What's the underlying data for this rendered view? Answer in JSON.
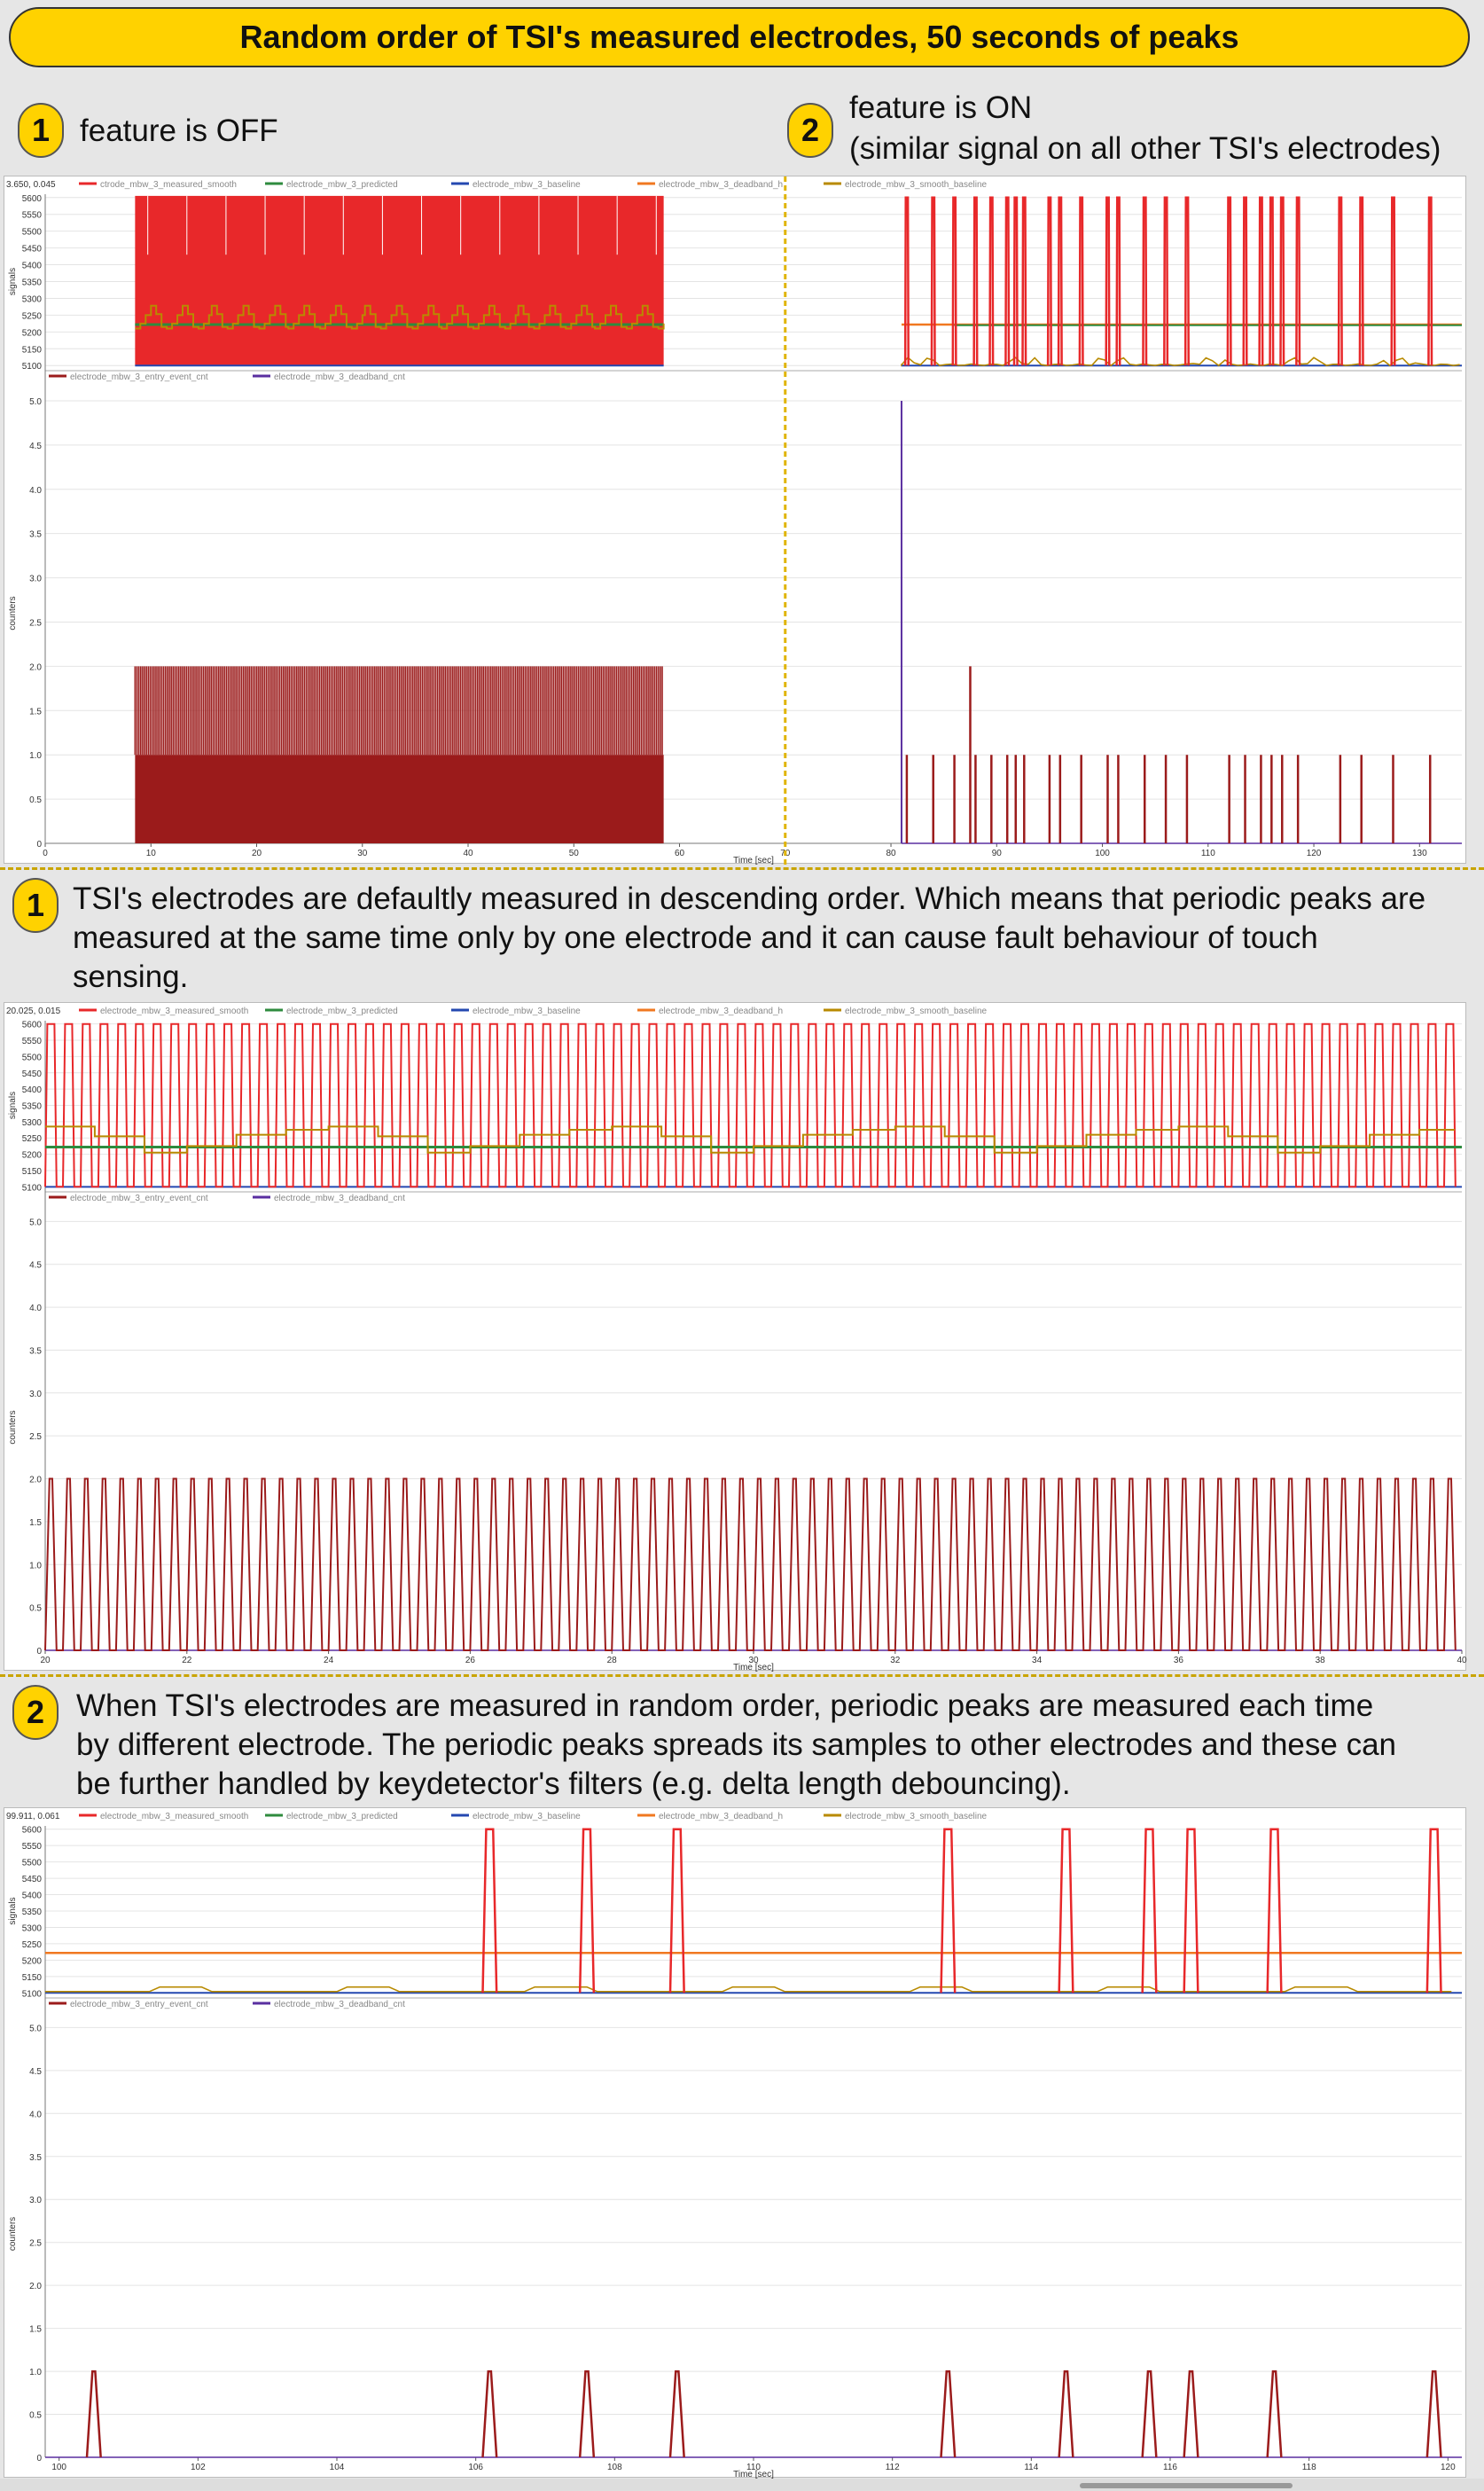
{
  "header": {
    "title": "Random order of TSI's measured electrodes, 50 seconds of peaks"
  },
  "intro": {
    "left_badge": "1",
    "left_caption": "feature is OFF",
    "right_badge": "2",
    "right_caption_1": "feature is ON",
    "right_caption_2": "(similar signal on all other TSI's electrodes)"
  },
  "section1": {
    "badge": "1",
    "lines": [
      "TSI's electrodes are defaultly measured in descending order. Which means that periodic peaks are",
      "measured at the same time only by one electrode and it can cause fault behaviour of touch",
      "sensing."
    ]
  },
  "section2": {
    "badge": "2",
    "lines": [
      "When TSI's electrodes are measured in random order, periodic peaks are measured each time",
      "by different electrode. The periodic peaks spreads its samples to other electrodes and these can",
      "be further handled by keydetector's filters (e.g. delta length debouncing)."
    ]
  },
  "colors": {
    "measured": "#e8282a",
    "predicted": "#2e8b3e",
    "baseline": "#2448b0",
    "deadband_h": "#f07820",
    "smooth_baseline": "#b88a00",
    "entry_event": "#9b1b1b",
    "deadband_cnt": "#5a2fa0"
  },
  "chart_data": [
    {
      "type": "line",
      "readout": "3.650, 0.045",
      "x_label": "Time [sec]",
      "xlim": [
        0,
        134
      ],
      "x_ticks": [
        0,
        10,
        20,
        30,
        40,
        50,
        60,
        70,
        80,
        90,
        100,
        110,
        120,
        130
      ],
      "marker_x": 70,
      "signals": {
        "ylabel": "signals",
        "ylim": [
          5090,
          5610
        ],
        "y_ticks": [
          5100,
          5150,
          5200,
          5250,
          5300,
          5350,
          5400,
          5450,
          5500,
          5550,
          5600
        ],
        "legend": [
          "ctrode_mbw_3_measured_smooth",
          "electrode_mbw_3_predicted",
          "electrode_mbw_3_baseline",
          "electrode_mbw_3_deadband_h",
          "electrode_mbw_3_smooth_baseline"
        ],
        "off_segment": {
          "x": [
            8.5,
            58.5
          ],
          "band": [
            5100,
            5605
          ],
          "baseline": 5100,
          "predicted": 5222,
          "smooth_range": [
            5210,
            5278
          ]
        },
        "on_segment": {
          "x": [
            81,
            134
          ],
          "baseline": 5100,
          "predicted": 5220,
          "deadband_h": 5222,
          "peaks_x": [
            81.5,
            84,
            86,
            88,
            89.5,
            91,
            91.8,
            92.6,
            95,
            96,
            98,
            100.5,
            101.5,
            104,
            106,
            108,
            112,
            113.5,
            115,
            116,
            117,
            118.5,
            122.5,
            124.5,
            127.5,
            131
          ],
          "peak_y": 5600
        }
      },
      "counters": {
        "ylabel": "counters",
        "ylim": [
          0,
          5.2
        ],
        "y_ticks": [
          0,
          0.5,
          1.0,
          1.5,
          2.0,
          2.5,
          3.0,
          3.5,
          4.0,
          4.5,
          5.0
        ],
        "legend": [
          "electrode_mbw_3_entry_event_cnt",
          "electrode_mbw_3_deadband_cnt"
        ],
        "off_segment": {
          "x": [
            8.5,
            58.5
          ],
          "max": 2,
          "baseline_fill": 1
        },
        "on_segment": {
          "spike_x": 81,
          "spike_value": 5,
          "peaks_x": [
            81.5,
            84,
            86,
            87.5,
            88,
            89.5,
            91,
            91.8,
            92.6,
            95,
            96,
            98,
            100.5,
            101.5,
            104,
            106,
            108,
            112,
            113.5,
            115,
            116,
            117,
            118.5,
            122.5,
            124.5,
            127.5,
            131
          ],
          "peak_value": 1,
          "tall_x": 87.5,
          "tall_value": 2
        }
      }
    },
    {
      "type": "line",
      "readout": "20.025, 0.015",
      "x_label": "Time [sec]",
      "xlim": [
        20,
        40
      ],
      "x_ticks": [
        20,
        22,
        24,
        26,
        28,
        30,
        32,
        34,
        36,
        38,
        40
      ],
      "signals": {
        "ylabel": "signals",
        "ylim": [
          5090,
          5610
        ],
        "y_ticks": [
          5100,
          5150,
          5200,
          5250,
          5300,
          5350,
          5400,
          5450,
          5500,
          5550,
          5600
        ],
        "legend": [
          "electrode_mbw_3_measured_smooth",
          "electrode_mbw_3_predicted",
          "electrode_mbw_3_baseline",
          "electrode_mbw_3_deadband_h",
          "electrode_mbw_3_smooth_baseline"
        ],
        "period": 0.25,
        "peak": 5600,
        "low": 5100,
        "predicted": 5222,
        "smooth_range": [
          5205,
          5285
        ]
      },
      "counters": {
        "ylabel": "counters",
        "ylim": [
          0,
          5.2
        ],
        "y_ticks": [
          0,
          0.5,
          1.0,
          1.5,
          2.0,
          2.5,
          3.0,
          3.5,
          4.0,
          4.5,
          5.0
        ],
        "legend": [
          "electrode_mbw_3_entry_event_cnt",
          "electrode_mbw_3_deadband_cnt"
        ],
        "period": 0.25,
        "peak": 2
      }
    },
    {
      "type": "line",
      "readout": "99.911, 0.061",
      "x_label": "Time [sec]",
      "xlim": [
        99.8,
        120.2
      ],
      "x_ticks": [
        100,
        102,
        104,
        106,
        108,
        110,
        112,
        114,
        116,
        118,
        120
      ],
      "signals": {
        "ylabel": "signals",
        "ylim": [
          5090,
          5610
        ],
        "y_ticks": [
          5100,
          5150,
          5200,
          5250,
          5300,
          5350,
          5400,
          5450,
          5500,
          5550,
          5600
        ],
        "legend": [
          "electrode_mbw_3_measured_smooth",
          "electrode_mbw_3_predicted",
          "electrode_mbw_3_baseline",
          "electrode_mbw_3_deadband_h",
          "electrode_mbw_3_smooth_baseline"
        ],
        "deadband_h": 5222,
        "baseline": 5100,
        "peaks_x": [
          106.2,
          107.6,
          108.9,
          112.8,
          114.5,
          115.7,
          116.3,
          117.5,
          119.8
        ],
        "peak_y": 5600
      },
      "counters": {
        "ylabel": "counters",
        "ylim": [
          0,
          5.2
        ],
        "y_ticks": [
          0,
          0.5,
          1.0,
          1.5,
          2.0,
          2.5,
          3.0,
          3.5,
          4.0,
          4.5,
          5.0
        ],
        "legend": [
          "electrode_mbw_3_entry_event_cnt",
          "electrode_mbw_3_deadband_cnt"
        ],
        "peaks_x": [
          100.5,
          106.2,
          107.6,
          108.9,
          112.8,
          114.5,
          115.7,
          116.3,
          117.5,
          119.8
        ],
        "peak": 1
      }
    }
  ]
}
